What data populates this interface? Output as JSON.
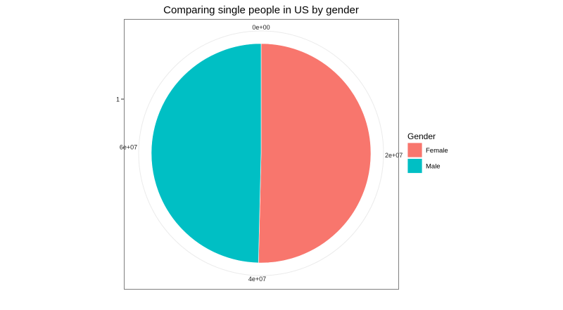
{
  "chart_data": {
    "type": "pie",
    "title": "Comparing single people in US by gender",
    "y_tick_label": "1",
    "theta_ticks": [
      {
        "value": 0,
        "label": "0e+00"
      },
      {
        "value": 20000000,
        "label": "2e+07"
      },
      {
        "value": 40000000,
        "label": "4e+07"
      },
      {
        "value": 60000000,
        "label": "6e+07"
      }
    ],
    "slices": [
      {
        "label": "Female",
        "value": 39900000,
        "color": "#F8766D"
      },
      {
        "label": "Male",
        "value": 39300000,
        "color": "#00BFC4"
      }
    ],
    "legend": {
      "title": "Gender",
      "position": "right",
      "entries": [
        "Female",
        "Male"
      ]
    },
    "grid": true,
    "colors": {
      "grid": "#ebebeb",
      "frame": "#7f7f7f",
      "slice_border": "#ffffff"
    }
  }
}
